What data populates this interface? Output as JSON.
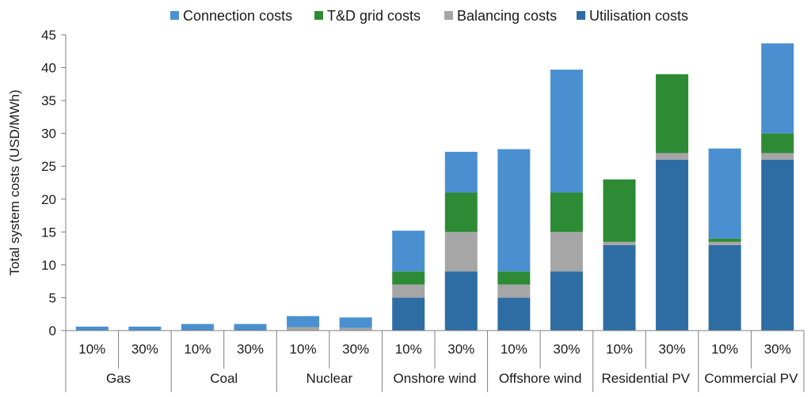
{
  "chart_data": {
    "type": "bar",
    "stacked": true,
    "ylabel": "Total system costs (USD/MWh)",
    "ylim": [
      0,
      45
    ],
    "yticks": [
      0,
      5,
      10,
      15,
      20,
      25,
      30,
      35,
      40,
      45
    ],
    "grid": false,
    "legend_position": "top",
    "groups": [
      {
        "label": "Gas",
        "subcategories": [
          "10%",
          "30%"
        ]
      },
      {
        "label": "Coal",
        "subcategories": [
          "10%",
          "30%"
        ]
      },
      {
        "label": "Nuclear",
        "subcategories": [
          "10%",
          "30%"
        ]
      },
      {
        "label": "Onshore wind",
        "subcategories": [
          "10%",
          "30%"
        ]
      },
      {
        "label": "Offshore wind",
        "subcategories": [
          "10%",
          "30%"
        ]
      },
      {
        "label": "Residential PV",
        "subcategories": [
          "10%",
          "30%"
        ]
      },
      {
        "label": "Commercial PV",
        "subcategories": [
          "10%",
          "30%"
        ]
      }
    ],
    "series": [
      {
        "name": "Utilisation costs",
        "color": "#2e6da4",
        "values": [
          0,
          0,
          0,
          0,
          0,
          0,
          5,
          9,
          5,
          9,
          13,
          26,
          13,
          26
        ]
      },
      {
        "name": "Balancing costs",
        "color": "#a6a6a6",
        "values": [
          0,
          0,
          0,
          0,
          0.5,
          0.4,
          2,
          6,
          2,
          6,
          0.5,
          1,
          0.5,
          1
        ]
      },
      {
        "name": "T&D grid costs",
        "color": "#2e8b35",
        "values": [
          0,
          0,
          0,
          0,
          0,
          0,
          2,
          6,
          2,
          6,
          9.5,
          12,
          0.5,
          3
        ]
      },
      {
        "name": "Connection costs",
        "color": "#4a90d0",
        "values": [
          0.6,
          0.6,
          1.0,
          1.0,
          1.7,
          1.6,
          6.2,
          6.2,
          18.6,
          18.7,
          0,
          0,
          13.7,
          13.7
        ]
      }
    ],
    "legend_order": [
      "Connection costs",
      "T&D grid costs",
      "Balancing costs",
      "Utilisation costs"
    ]
  }
}
